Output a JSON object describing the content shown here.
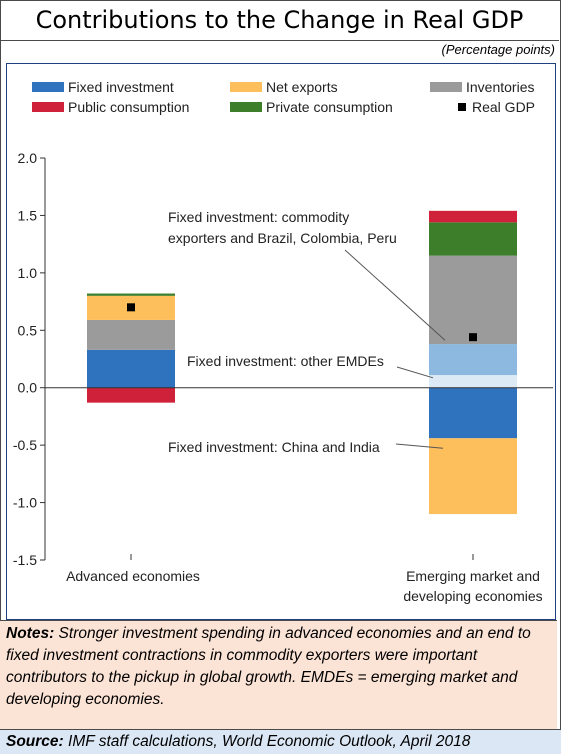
{
  "title": "Contributions to the Change in Real GDP",
  "subtitle": "(Percentage points)",
  "notes_label": "Notes:",
  "notes_text": "Stronger investment spending in advanced economies and an end to fixed investment contractions in commodity exporters were important contributors to the pickup in global growth. EMDEs = emerging market and developing economies.",
  "source_label": "Source:",
  "source_text": "IMF staff calculations, World Economic Outlook, April 2018",
  "colors": {
    "fixed_investment": "#2f73bf",
    "fixed_investment_other": "#dceaf6",
    "fixed_investment_commodity": "#8db8e0",
    "net_exports": "#fdbf5c",
    "inventories": "#9b9b9b",
    "public_consumption": "#d0213a",
    "private_consumption": "#3d7e2b",
    "real_gdp": "#000000"
  },
  "chart_data": {
    "type": "bar",
    "stacked": true,
    "categories": [
      "Advanced economies",
      "Emerging market and developing economies"
    ],
    "category_lines": [
      [
        "Advanced economies"
      ],
      [
        "Emerging market and",
        "developing economies"
      ]
    ],
    "ylim": [
      -1.5,
      2.0
    ],
    "yticks": [
      "2.0",
      "1.5",
      "1.0",
      "0.5",
      "0.0",
      "-0.5",
      "-1.0",
      "-1.5"
    ],
    "ytick_values": [
      2.0,
      1.5,
      1.0,
      0.5,
      0.0,
      -0.5,
      -1.0,
      -1.5
    ],
    "legend": [
      {
        "name": "Fixed investment",
        "color": "#2f73bf",
        "marker": "square"
      },
      {
        "name": "Net exports",
        "color": "#fdbf5c",
        "marker": "square"
      },
      {
        "name": "Inventories",
        "color": "#9b9b9b",
        "marker": "square"
      },
      {
        "name": "Public consumption",
        "color": "#d0213a",
        "marker": "square"
      },
      {
        "name": "Private consumption",
        "color": "#3d7e2b",
        "marker": "square"
      },
      {
        "name": "Real GDP",
        "color": "#000000",
        "marker": "point"
      }
    ],
    "stacks": [
      {
        "category": "Advanced economies",
        "segments": [
          {
            "series": "Fixed investment",
            "value": 0.33,
            "color": "#2f73bf"
          },
          {
            "series": "Inventories",
            "value": 0.26,
            "color": "#9b9b9b"
          },
          {
            "series": "Net exports",
            "value": 0.21,
            "color": "#fdbf5c"
          },
          {
            "series": "Private consumption",
            "value": 0.02,
            "color": "#3d7e2b"
          },
          {
            "series": "Public consumption",
            "value": -0.13,
            "color": "#d0213a"
          }
        ],
        "real_gdp": 0.7
      },
      {
        "category": "Emerging market and developing economies",
        "segments": [
          {
            "series": "Fixed investment: other EMDEs",
            "value": 0.11,
            "color": "#dceaf6"
          },
          {
            "series": "Fixed investment: commodity exporters and Brazil, Colombia, Peru",
            "value": 0.27,
            "color": "#8db8e0"
          },
          {
            "series": "Inventories",
            "value": 0.77,
            "color": "#9b9b9b"
          },
          {
            "series": "Private consumption",
            "value": 0.29,
            "color": "#3d7e2b"
          },
          {
            "series": "Public consumption",
            "value": 0.1,
            "color": "#d0213a"
          },
          {
            "series": "Fixed investment: China and India",
            "value": -0.44,
            "color": "#2f73bf"
          },
          {
            "series": "Net exports",
            "value": -0.66,
            "color": "#fdbf5c"
          }
        ],
        "real_gdp": 0.44
      }
    ],
    "annotations": [
      {
        "lines": [
          "Fixed investment: commodity",
          "exporters and Brazil, Colombia, Peru"
        ],
        "category": 1,
        "y": 0.37
      },
      {
        "lines": [
          "Fixed investment: other EMDEs"
        ],
        "category": 1,
        "y": 0.06
      },
      {
        "lines": [
          "Fixed investment: China and India"
        ],
        "category": 1,
        "y": -0.44
      }
    ]
  }
}
